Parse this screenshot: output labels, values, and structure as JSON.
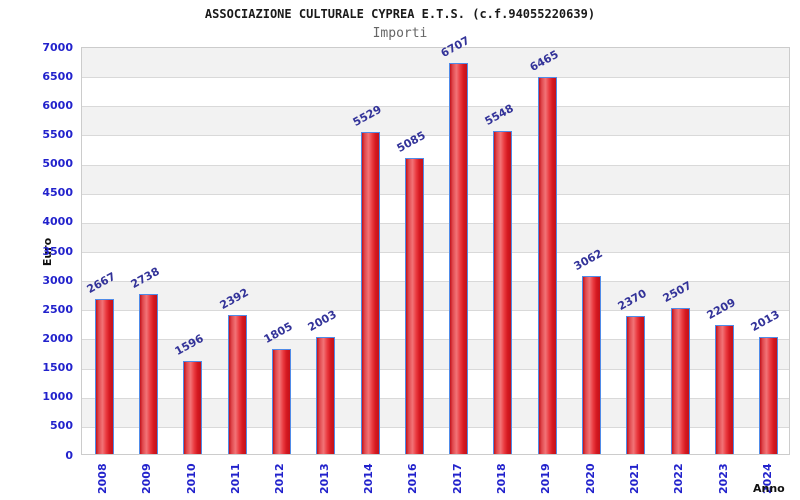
{
  "chart_data": {
    "type": "bar",
    "title": "ASSOCIAZIONE CULTURALE CYPREA E.T.S. (c.f.94055220639)",
    "subtitle": "Importi",
    "xlabel": "Anno",
    "ylabel": "Euro",
    "categories": [
      "2008",
      "2009",
      "2010",
      "2011",
      "2012",
      "2013",
      "2014",
      "2016",
      "2017",
      "2018",
      "2019",
      "2020",
      "2021",
      "2022",
      "2023",
      "2024"
    ],
    "values": [
      2667,
      2738,
      1596,
      2392,
      1805,
      2003,
      5529,
      5085,
      6707,
      5548,
      6465,
      3062,
      2370,
      2507,
      2209,
      2013
    ],
    "ylim": [
      0,
      7000
    ],
    "y_ticks": [
      0,
      500,
      1000,
      1500,
      2000,
      2500,
      3000,
      3500,
      4000,
      4500,
      5000,
      5500,
      6000,
      6500,
      7000
    ],
    "grid": "horizontal gridlines every 500 with alternating shaded bands",
    "legend": "none",
    "bar_value_labels_rotated": true,
    "x_tick_labels_rotated_90": true
  },
  "colors": {
    "title": "#1a1a1a",
    "subtitle": "#666666",
    "axis_title": "#111111",
    "tick_label": "#2222cc",
    "value_label": "#333399",
    "bar_border": "#4f8be8",
    "bar_fill_edge": "#c3121b",
    "bar_fill_mid": "#f27477",
    "band_shade": "#f2f2f2",
    "grid_line": "#d9d9d9",
    "plot_border": "#cccccc",
    "background": "#ffffff"
  }
}
